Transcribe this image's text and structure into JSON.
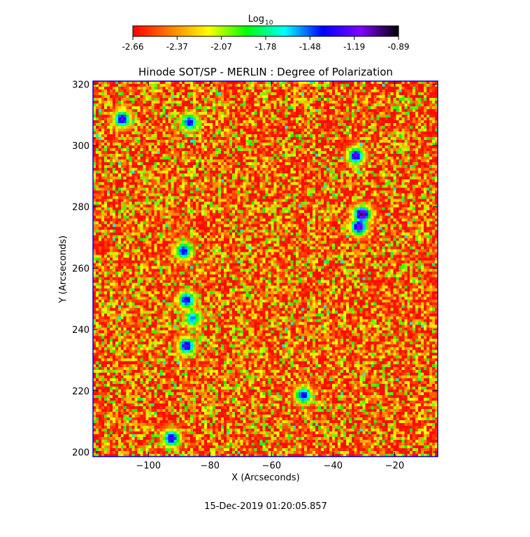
{
  "colorbar": {
    "label": "Log",
    "label_sub": "10",
    "ticks": [
      "-2.66",
      "-2.37",
      "-2.07",
      "-1.78",
      "-1.48",
      "-1.19",
      "-0.89"
    ],
    "range": [
      -2.66,
      -0.89
    ],
    "colors": [
      "#ff0000",
      "#ff8000",
      "#ffff00",
      "#00ff00",
      "#00ffff",
      "#0000ff",
      "#8000ff",
      "#000000"
    ]
  },
  "chart_data": {
    "type": "heatmap",
    "title": "Hinode SOT/SP - MERLIN : Degree of Polarization",
    "xlabel": "X (Arcseconds)",
    "ylabel": "Y (Arcseconds)",
    "xlim": [
      -118,
      -6
    ],
    "ylim": [
      198.5,
      321
    ],
    "xticks": [
      -100,
      -80,
      -60,
      -40,
      -20
    ],
    "yticks": [
      200,
      220,
      240,
      260,
      280,
      300,
      320
    ],
    "value_range": [
      -2.66,
      -0.89
    ],
    "features": [
      {
        "x": -109,
        "y": 309,
        "v": -1.2
      },
      {
        "x": -87,
        "y": 308,
        "v": -1.3
      },
      {
        "x": -33,
        "y": 297,
        "v": -1.2
      },
      {
        "x": -31,
        "y": 278,
        "v": -0.95
      },
      {
        "x": -32,
        "y": 274,
        "v": -1.1
      },
      {
        "x": -89,
        "y": 266,
        "v": -1.3
      },
      {
        "x": -88,
        "y": 250,
        "v": -1.25
      },
      {
        "x": -86,
        "y": 244,
        "v": -1.5
      },
      {
        "x": -88,
        "y": 235,
        "v": -1.2
      },
      {
        "x": -50,
        "y": 219,
        "v": -1.3
      },
      {
        "x": -93,
        "y": 205,
        "v": -1.2
      }
    ]
  },
  "footer": {
    "timestamp": "15-Dec-2019 01:20:05.857"
  }
}
